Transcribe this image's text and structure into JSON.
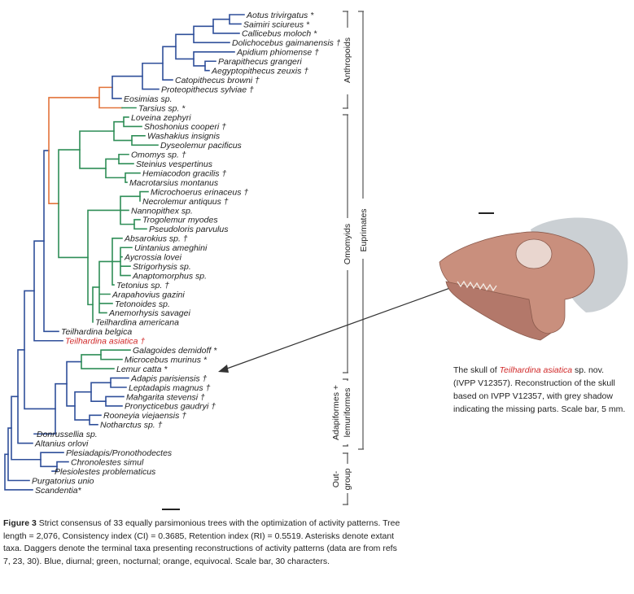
{
  "figure": {
    "title": "Figure 3",
    "caption": "Strict consensus of 33 equally parsimonious trees with the optimization of activity patterns. Tree length = 2,076, Consistency index (CI) = 0.3685, Retention index (RI) = 0.5519. Asterisks denote extant taxa. Daggers denote the terminal taxa presenting reconstructions of activity patterns (data are from refs 7, 23, 30). Blue, diurnal; green, nocturnal; orange, equivocal. Scale bar, 30 characters."
  },
  "colors": {
    "blue": "#2f4f9a",
    "green": "#2f8e57",
    "orange": "#e2733a",
    "red": "#d12a2a",
    "line": "#555555"
  },
  "skull_caption": {
    "prefix": "The skull of ",
    "species": "Teilhardina asiatica",
    "suffix": " sp. nov. (IVPP V12357). Reconstruction of the skull based on IVPP V12357, with grey shadow indicating the missing parts. Scale bar, 5 mm."
  },
  "clades": {
    "anthropoids": "Anthropoids",
    "omomyids": "Omomyids",
    "euprimates": "Euprimates",
    "adapiformes": "Adapiformes +",
    "lemuriformes": "lemuriformes",
    "out": "Out-",
    "group": "group"
  },
  "taxa": [
    "Aotus trivirgatus *",
    "Saimiri sciureus *",
    "Callicebus moloch *",
    "Dolichocebus gaimanensis †",
    "Apidium phiomense †",
    "Parapithecus grangeri",
    "Aegyptopithecus zeuxis †",
    "Catopithecus browni †",
    "Proteopithecus sylviae †",
    "Eosimias sp.",
    "Tarsius sp. *",
    "Loveina zephyri",
    "Shoshonius cooperi †",
    "Washakius insignis",
    "Dyseolemur pacificus",
    "Omomys sp. †",
    "Steinius vespertinus",
    "Hemiacodon gracilis †",
    "Macrotarsius montanus",
    "Microchoerus erinaceus †",
    "Necrolemur antiquus †",
    "Nannopithex sp.",
    "Trogolemur myodes",
    "Pseudoloris parvulus",
    "Absarokius sp. †",
    "Uintanius ameghini",
    "Aycrossia lovei",
    "Strigorhysis sp.",
    "Anaptomorphus sp.",
    "Tetonius sp. †",
    "Arapahovius gazini",
    "Tetonoides sp.",
    "Anemorhysis savagei",
    "Teilhardina americana",
    "Teilhardina belgica",
    "Teilhardina asiatica †",
    "Galagoides demidoff *",
    "Microcebus murinus *",
    "Lemur catta *",
    "Adapis parisiensis †",
    "Leptadapis magnus †",
    "Mahgarita stevensi †",
    "Pronycticebus gaudryi †",
    "Rooneyia viejaensis †",
    "Notharctus sp. †",
    "Donrussellia sp.",
    "Altanius orlovi",
    "Plesiadapis/Pronothodectes",
    "Chronolestes simul",
    "Plesiolestes problematicus",
    "Purgatorius unio",
    "Scandentia*"
  ]
}
